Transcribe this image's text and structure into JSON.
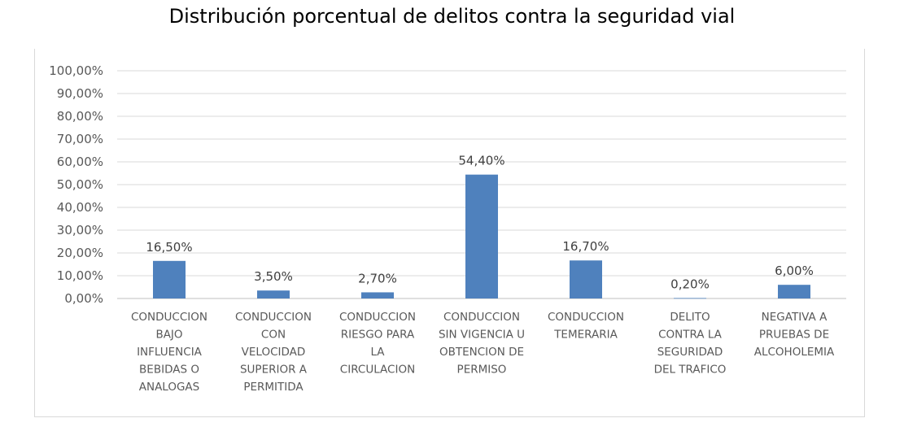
{
  "chart_data": {
    "type": "bar",
    "title": "Distribución porcentual de delitos contra la seguridad vial",
    "xlabel": "",
    "ylabel": "",
    "ylim": [
      0,
      100
    ],
    "yticks": [
      "0,00%",
      "10,00%",
      "20,00%",
      "30,00%",
      "40,00%",
      "50,00%",
      "60,00%",
      "70,00%",
      "80,00%",
      "90,00%",
      "100,00%"
    ],
    "categories": [
      [
        "CONDUCCION",
        "BAJO",
        "INFLUENCIA",
        "BEBIDAS O",
        "ANALOGAS"
      ],
      [
        "CONDUCCION",
        "CON",
        "VELOCIDAD",
        "SUPERIOR A",
        "PERMITIDA"
      ],
      [
        "CONDUCCION",
        "RIESGO PARA",
        "LA",
        "CIRCULACION"
      ],
      [
        "CONDUCCION",
        "SIN VIGENCIA U",
        "OBTENCION DE",
        "PERMISO"
      ],
      [
        "CONDUCCION",
        "TEMERARIA"
      ],
      [
        "DELITO",
        "CONTRA LA",
        "SEGURIDAD",
        "DEL TRAFICO"
      ],
      [
        "NEGATIVA A",
        "PRUEBAS DE",
        "ALCOHOLEMIA"
      ]
    ],
    "values": [
      16.5,
      3.5,
      2.7,
      54.4,
      16.7,
      0.2,
      6.0
    ],
    "data_labels": [
      "16,50%",
      "3,50%",
      "2,70%",
      "54,40%",
      "16,70%",
      "0,20%",
      "6,00%"
    ],
    "bar_color": "#4f81bd",
    "grid": true,
    "legend": "none"
  }
}
